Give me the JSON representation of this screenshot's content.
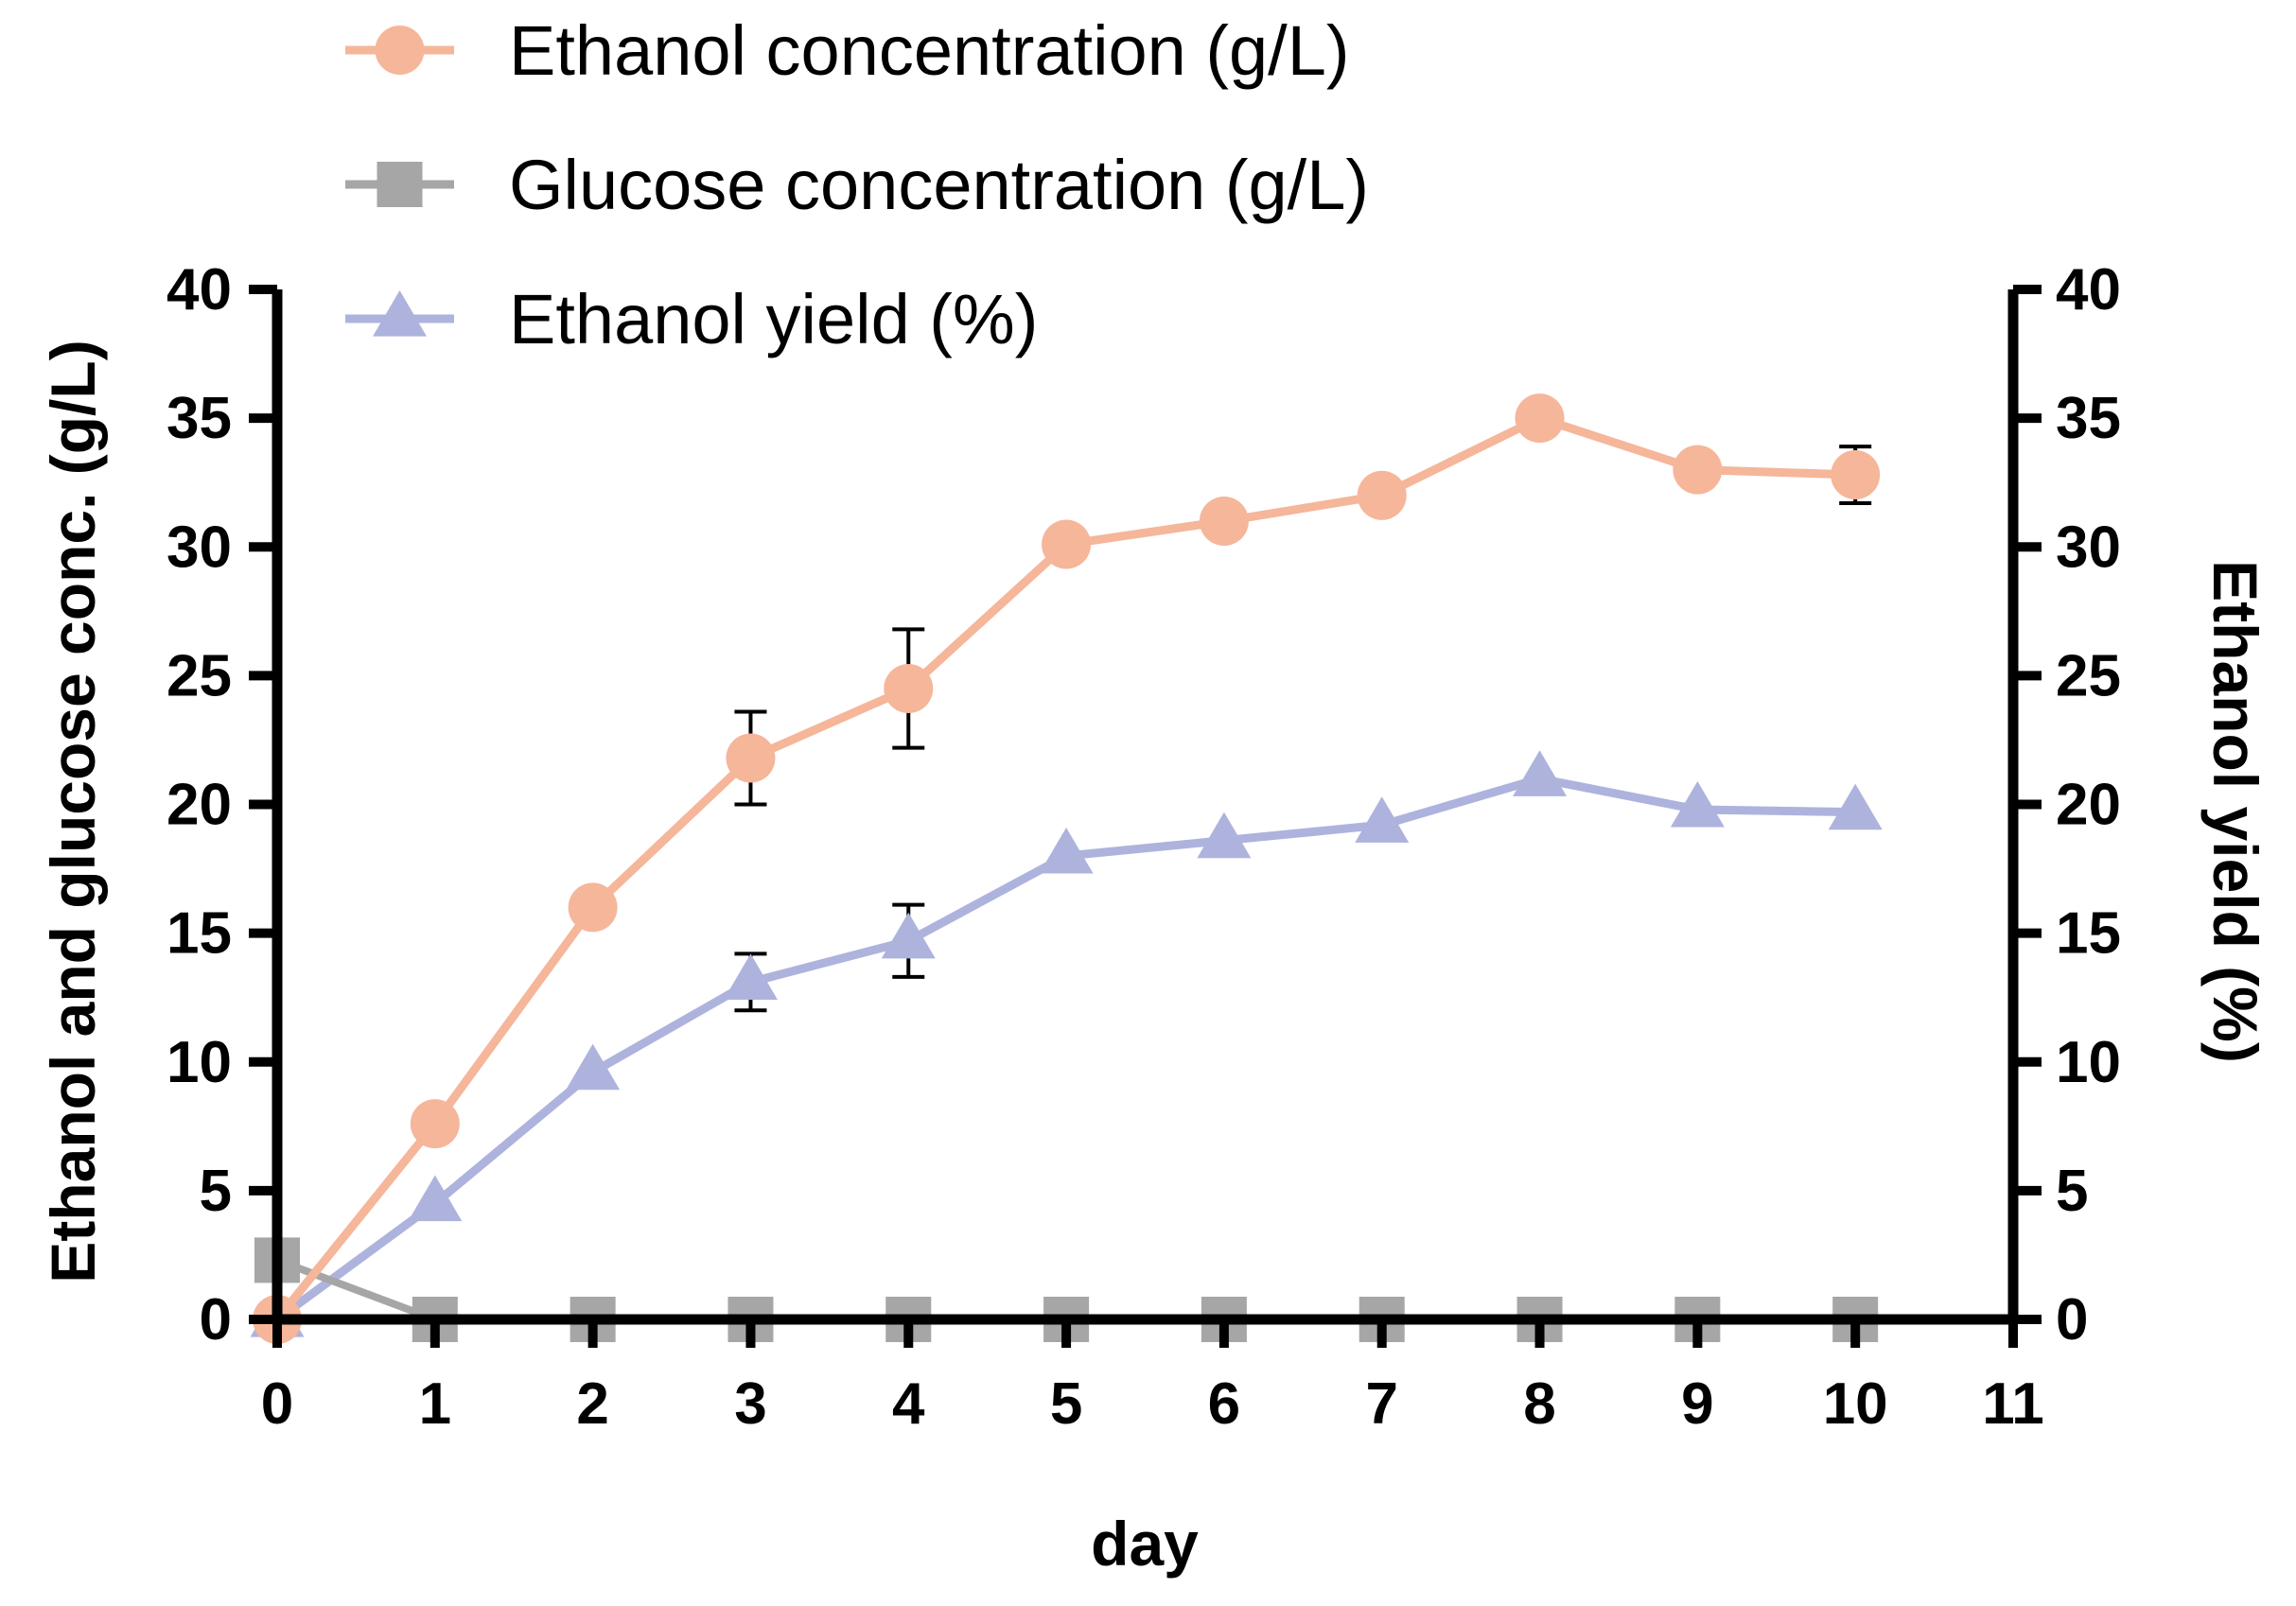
{
  "chart_data": {
    "type": "line",
    "x": [
      0,
      1,
      2,
      3,
      4,
      5,
      6,
      7,
      8,
      9,
      10
    ],
    "xlim": [
      0,
      11
    ],
    "x_ticks": [
      "0",
      "1",
      "2",
      "3",
      "4",
      "5",
      "6",
      "7",
      "8",
      "9",
      "10",
      "11"
    ],
    "xlabel": "day",
    "ylabel_left": "Ethanol and glucose conc. (g/L)",
    "ylabel_right": "Ethanol yield (%)",
    "ylim_left": [
      0,
      40
    ],
    "ylim_right": [
      0,
      40
    ],
    "y_ticks_left": [
      "0",
      "5",
      "10",
      "15",
      "20",
      "25",
      "30",
      "35",
      "40"
    ],
    "y_ticks_right": [
      "0",
      "5",
      "10",
      "15",
      "20",
      "25",
      "30",
      "35",
      "40"
    ],
    "legend_position": "top-left",
    "series": [
      {
        "name": "Ethanol concentration (g/L)",
        "axis": "left",
        "marker": "circle",
        "color": "#F5B69A",
        "values": [
          0,
          7.6,
          16.0,
          21.8,
          24.5,
          30.1,
          31.0,
          32.0,
          35.0,
          33.0,
          32.8
        ],
        "errors": [
          0,
          0,
          0,
          1.8,
          2.3,
          0,
          0,
          0,
          0,
          0,
          1.1
        ]
      },
      {
        "name": "Glucose concentration (g/L)",
        "axis": "left",
        "marker": "square",
        "color": "#A6A6A6",
        "values": [
          2.3,
          0,
          0,
          0,
          0,
          0,
          0,
          0,
          0,
          0,
          0
        ],
        "errors": [
          0,
          0,
          0,
          0,
          0,
          0,
          0,
          0,
          0,
          0,
          0
        ]
      },
      {
        "name": "Ethanol yield (%)",
        "axis": "right",
        "marker": "triangle",
        "color": "#AEB3DD",
        "values": [
          0,
          4.5,
          9.6,
          13.1,
          14.7,
          18.0,
          18.6,
          19.2,
          21.0,
          19.8,
          19.7
        ],
        "errors": [
          0,
          0,
          0,
          1.1,
          1.4,
          0,
          0,
          0,
          0,
          0,
          0
        ]
      }
    ]
  }
}
